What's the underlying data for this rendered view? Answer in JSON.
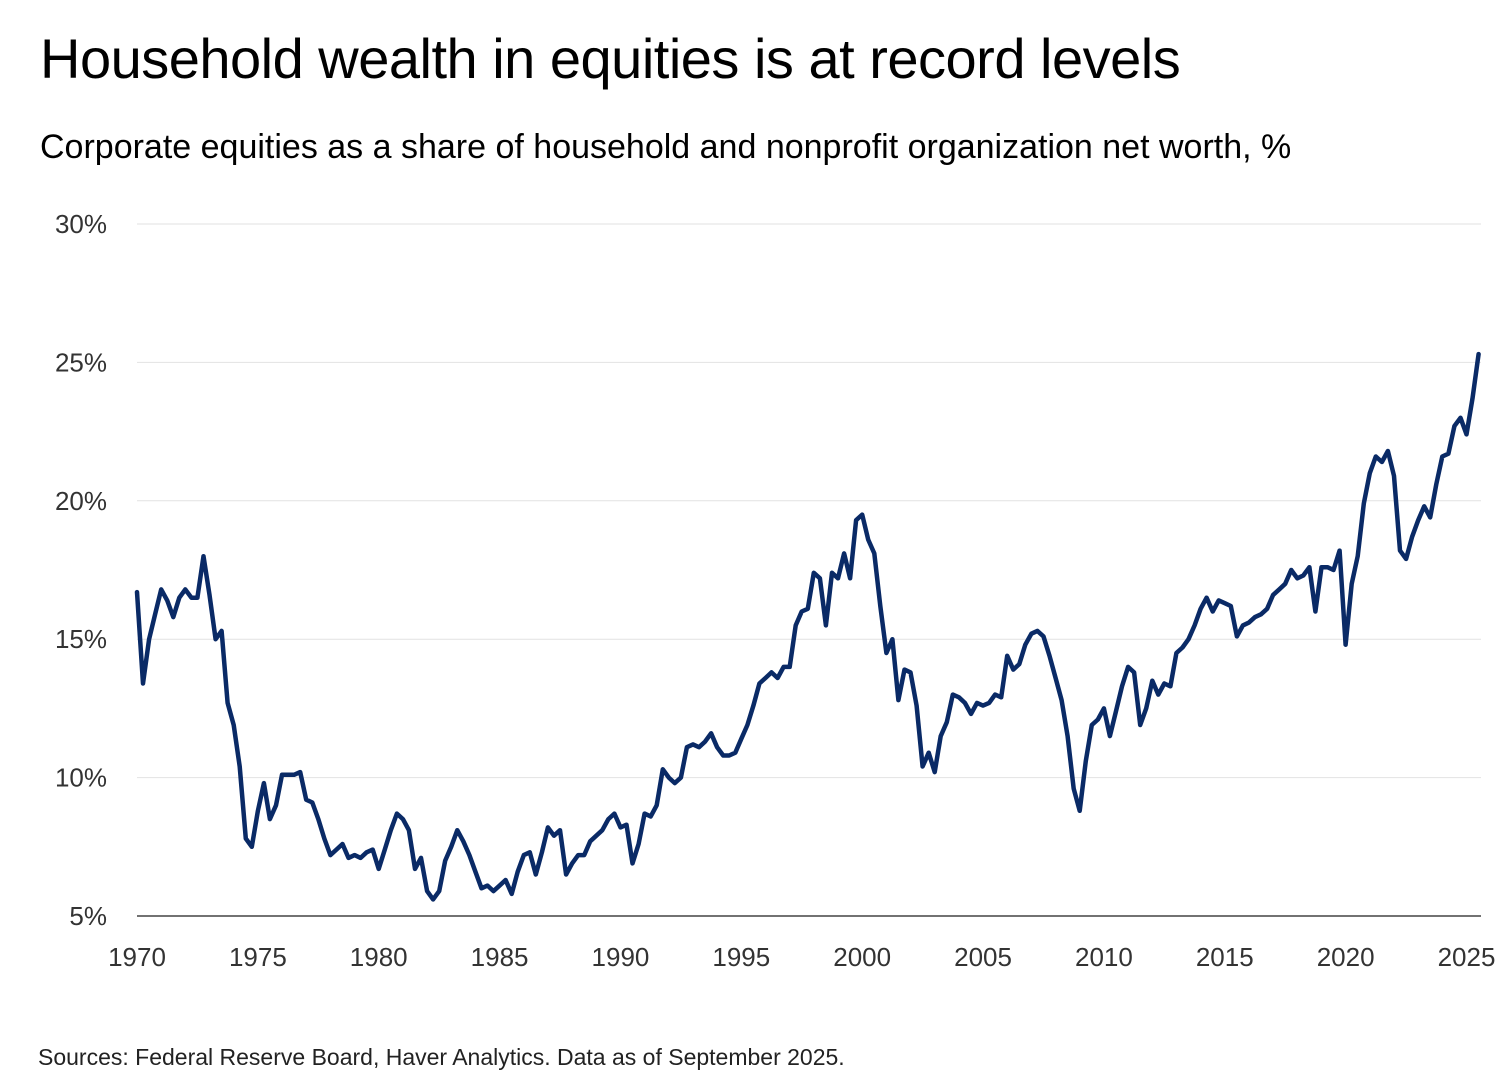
{
  "title": "Household wealth in equities is at record levels",
  "subtitle": "Corporate equities as a share of household and nonprofit organization net worth, %",
  "source": "Sources: Federal Reserve Board, Haver Analytics. Data as of September 2025.",
  "colors": {
    "line": "#0a2a66",
    "grid": "#e2e2e2",
    "axis": "#444444"
  },
  "chart_data": {
    "type": "line",
    "title": "Household wealth in equities is at record levels",
    "subtitle": "Corporate equities as a share of household and nonprofit organization net worth, %",
    "xlabel": "",
    "ylabel": "",
    "xlim": [
      1970,
      2025.6
    ],
    "ylim": [
      5,
      30
    ],
    "y_ticks": [
      5,
      10,
      15,
      20,
      25,
      30
    ],
    "y_tick_labels": [
      "5%",
      "10%",
      "15%",
      "20%",
      "25%",
      "30%"
    ],
    "x_ticks": [
      1970,
      1975,
      1980,
      1985,
      1990,
      1995,
      2000,
      2005,
      2010,
      2015,
      2020,
      2025
    ],
    "x_tick_labels": [
      "1970",
      "1975",
      "1980",
      "1985",
      "1990",
      "1995",
      "2000",
      "2005",
      "2010",
      "2015",
      "2020",
      "2025"
    ],
    "grid": true,
    "legend": "none",
    "series": [
      {
        "x": [
          1970.0,
          1970.25,
          1970.5,
          1970.75,
          1971.0,
          1971.25,
          1971.5,
          1971.75,
          1972.0,
          1972.25,
          1972.5,
          1972.75,
          1973.0,
          1973.25,
          1973.5,
          1973.75,
          1974.0,
          1974.25,
          1974.5,
          1974.75,
          1975.0,
          1975.25,
          1975.5,
          1975.75,
          1976.0,
          1976.25,
          1976.5,
          1976.75,
          1977.0,
          1977.25,
          1977.5,
          1977.75,
          1978.0,
          1978.25,
          1978.5,
          1978.75,
          1979.0,
          1979.25,
          1979.5,
          1979.75,
          1980.0,
          1980.25,
          1980.5,
          1980.75,
          1981.0,
          1981.25,
          1981.5,
          1981.75,
          1982.0,
          1982.25,
          1982.5,
          1982.75,
          1983.0,
          1983.25,
          1983.5,
          1983.75,
          1984.0,
          1984.25,
          1984.5,
          1984.75,
          1985.0,
          1985.25,
          1985.5,
          1985.75,
          1986.0,
          1986.25,
          1986.5,
          1986.75,
          1987.0,
          1987.25,
          1987.5,
          1987.75,
          1988.0,
          1988.25,
          1988.5,
          1988.75,
          1989.0,
          1989.25,
          1989.5,
          1989.75,
          1990.0,
          1990.25,
          1990.5,
          1990.75,
          1991.0,
          1991.25,
          1991.5,
          1991.75,
          1992.0,
          1992.25,
          1992.5,
          1992.75,
          1993.0,
          1993.25,
          1993.5,
          1993.75,
          1994.0,
          1994.25,
          1994.5,
          1994.75,
          1995.0,
          1995.25,
          1995.5,
          1995.75,
          1996.0,
          1996.25,
          1996.5,
          1996.75,
          1997.0,
          1997.25,
          1997.5,
          1997.75,
          1998.0,
          1998.25,
          1998.5,
          1998.75,
          1999.0,
          1999.25,
          1999.5,
          1999.75,
          2000.0,
          2000.25,
          2000.5,
          2000.75,
          2001.0,
          2001.25,
          2001.5,
          2001.75,
          2002.0,
          2002.25,
          2002.5,
          2002.75,
          2003.0,
          2003.25,
          2003.5,
          2003.75,
          2004.0,
          2004.25,
          2004.5,
          2004.75,
          2005.0,
          2005.25,
          2005.5,
          2005.75,
          2006.0,
          2006.25,
          2006.5,
          2006.75,
          2007.0,
          2007.25,
          2007.5,
          2007.75,
          2008.0,
          2008.25,
          2008.5,
          2008.75,
          2009.0,
          2009.25,
          2009.5,
          2009.75,
          2010.0,
          2010.25,
          2010.5,
          2010.75,
          2011.0,
          2011.25,
          2011.5,
          2011.75,
          2012.0,
          2012.25,
          2012.5,
          2012.75,
          2013.0,
          2013.25,
          2013.5,
          2013.75,
          2014.0,
          2014.25,
          2014.5,
          2014.75,
          2015.0,
          2015.25,
          2015.5,
          2015.75,
          2016.0,
          2016.25,
          2016.5,
          2016.75,
          2017.0,
          2017.25,
          2017.5,
          2017.75,
          2018.0,
          2018.25,
          2018.5,
          2018.75,
          2019.0,
          2019.25,
          2019.5,
          2019.75,
          2020.0,
          2020.25,
          2020.5,
          2020.75,
          2021.0,
          2021.25,
          2021.5,
          2021.75,
          2022.0,
          2022.25,
          2022.5,
          2022.75,
          2023.0,
          2023.25,
          2023.5,
          2023.75,
          2024.0,
          2024.25,
          2024.5,
          2024.75,
          2025.0,
          2025.25,
          2025.5
        ],
        "values": [
          16.7,
          13.4,
          15.0,
          15.9,
          16.8,
          16.4,
          15.8,
          16.5,
          16.8,
          16.5,
          16.5,
          18.0,
          16.6,
          15.0,
          15.3,
          12.7,
          11.9,
          10.4,
          7.8,
          7.5,
          8.8,
          9.8,
          8.5,
          9.0,
          10.1,
          10.1,
          10.1,
          10.2,
          9.2,
          9.1,
          8.5,
          7.8,
          7.2,
          7.4,
          7.6,
          7.1,
          7.2,
          7.1,
          7.3,
          7.4,
          6.7,
          7.4,
          8.1,
          8.7,
          8.5,
          8.1,
          6.7,
          7.1,
          5.9,
          5.6,
          5.9,
          7.0,
          7.5,
          8.1,
          7.7,
          7.2,
          6.6,
          6.0,
          6.1,
          5.9,
          6.1,
          6.3,
          5.8,
          6.6,
          7.2,
          7.3,
          6.5,
          7.3,
          8.2,
          7.9,
          8.1,
          6.5,
          6.9,
          7.2,
          7.2,
          7.7,
          7.9,
          8.1,
          8.5,
          8.7,
          8.2,
          8.3,
          6.9,
          7.6,
          8.7,
          8.6,
          9.0,
          10.3,
          10.0,
          9.8,
          10.0,
          11.1,
          11.2,
          11.1,
          11.3,
          11.6,
          11.1,
          10.8,
          10.8,
          10.9,
          11.4,
          11.9,
          12.6,
          13.4,
          13.6,
          13.8,
          13.6,
          14.0,
          14.0,
          15.5,
          16.0,
          16.1,
          17.4,
          17.2,
          15.5,
          17.4,
          17.2,
          18.1,
          17.2,
          19.3,
          19.5,
          18.6,
          18.1,
          16.2,
          14.5,
          15.0,
          12.8,
          13.9,
          13.8,
          12.6,
          10.4,
          10.9,
          10.2,
          11.5,
          12.0,
          13.0,
          12.9,
          12.7,
          12.3,
          12.7,
          12.6,
          12.7,
          13.0,
          12.9,
          14.4,
          13.9,
          14.1,
          14.8,
          15.2,
          15.3,
          15.1,
          14.4,
          13.6,
          12.8,
          11.5,
          9.6,
          8.8,
          10.6,
          11.9,
          12.1,
          12.5,
          11.5,
          12.4,
          13.3,
          14.0,
          13.8,
          11.9,
          12.5,
          13.5,
          13.0,
          13.4,
          13.3,
          14.5,
          14.7,
          15.0,
          15.5,
          16.1,
          16.5,
          16.0,
          16.4,
          16.3,
          16.2,
          15.1,
          15.5,
          15.6,
          15.8,
          15.9,
          16.1,
          16.6,
          16.8,
          17.0,
          17.5,
          17.2,
          17.3,
          17.6,
          16.0,
          17.6,
          17.6,
          17.5,
          18.2,
          14.8,
          17.0,
          18.0,
          19.9,
          21.0,
          21.6,
          21.4,
          21.8,
          20.9,
          18.2,
          17.9,
          18.7,
          19.3,
          19.8,
          19.4,
          20.6,
          21.6,
          21.7,
          22.7,
          23.0,
          22.4,
          23.7,
          25.3
        ]
      }
    ]
  }
}
